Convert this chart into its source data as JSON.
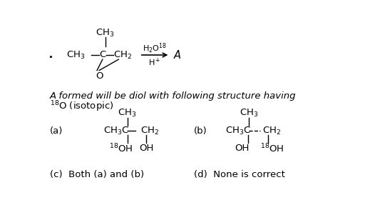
{
  "bg_color": "#ffffff",
  "fig_width": 5.12,
  "fig_height": 3.08,
  "dpi": 100,
  "description_line1": "A formed will be diol with following structure having",
  "description_line2": "$^{18}$O (isotopic)",
  "option_c": "(c)  Both (a) and (b)",
  "option_d": "(d)  None is correct"
}
